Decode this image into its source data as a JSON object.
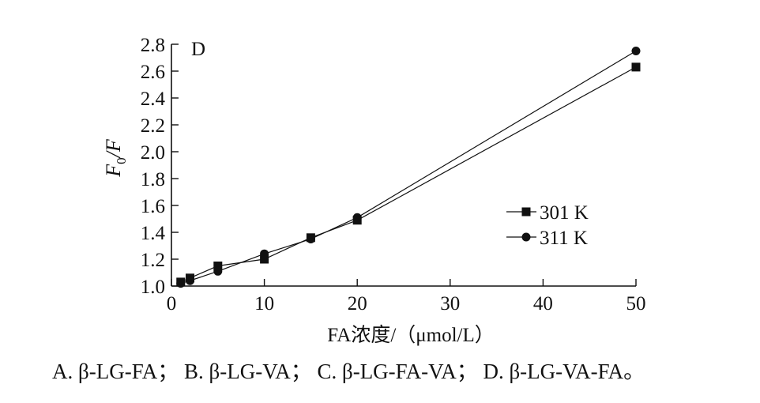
{
  "chart_data": {
    "type": "line",
    "panel_label": "D",
    "xlabel": "FA浓度/（μmol/L）",
    "ylabel": "F0/F",
    "ylabel_main": "F",
    "ylabel_sub": "0",
    "ylabel_rest": "/F",
    "xlim": [
      0,
      50
    ],
    "ylim": [
      1.0,
      2.8
    ],
    "x_ticks": [
      0,
      10,
      20,
      30,
      40,
      50
    ],
    "x_tick_labels": [
      "0",
      "10",
      "20",
      "30",
      "40",
      "50"
    ],
    "y_ticks": [
      1.0,
      1.2,
      1.4,
      1.6,
      1.8,
      2.0,
      2.2,
      2.4,
      2.6,
      2.8
    ],
    "y_tick_labels": [
      "1.0",
      "1.2",
      "1.4",
      "1.6",
      "1.8",
      "2.0",
      "2.2",
      "2.4",
      "2.6",
      "2.8"
    ],
    "grid": false,
    "legend_position": "right",
    "series": [
      {
        "name": "301 K",
        "marker": "square",
        "color": "#111111",
        "x": [
          1,
          2,
          5,
          10,
          15,
          20,
          50
        ],
        "y": [
          1.03,
          1.06,
          1.15,
          1.2,
          1.36,
          1.49,
          2.63
        ]
      },
      {
        "name": "311 K",
        "marker": "circle",
        "color": "#111111",
        "x": [
          1,
          2,
          5,
          10,
          15,
          20,
          50
        ],
        "y": [
          1.02,
          1.04,
          1.11,
          1.24,
          1.35,
          1.51,
          2.75
        ]
      }
    ]
  },
  "caption": {
    "text": "A. β-LG-FA； B. β-LG-VA； C. β-LG-FA-VA； D. β-LG-VA-FA。"
  }
}
